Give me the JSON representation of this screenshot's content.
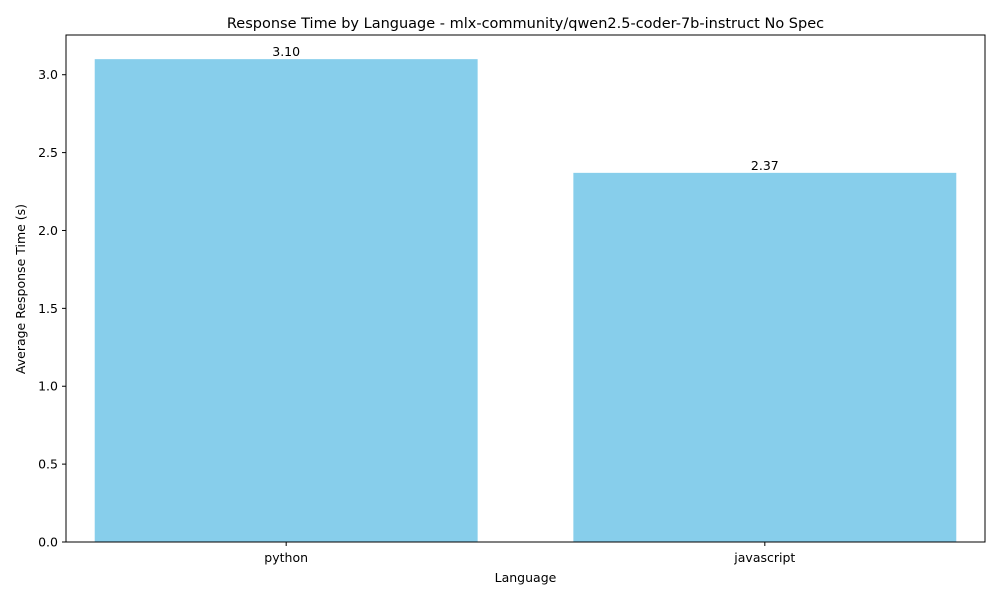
{
  "chart_data": {
    "type": "bar",
    "title": "Response Time by Language - mlx-community/qwen2.5-coder-7b-instruct No Spec",
    "xlabel": "Language",
    "ylabel": "Average Response Time (s)",
    "categories": [
      "python",
      "javascript"
    ],
    "values": [
      3.1,
      2.37
    ],
    "data_labels": [
      "3.10",
      "2.37"
    ],
    "ylim": [
      0,
      3.255
    ],
    "yticks": [
      0.0,
      0.5,
      1.0,
      1.5,
      2.0,
      2.5,
      3.0
    ],
    "ytick_labels": [
      "0.0",
      "0.5",
      "1.0",
      "1.5",
      "2.0",
      "2.5",
      "3.0"
    ],
    "bar_color": "#87CEEB",
    "grid": false
  }
}
